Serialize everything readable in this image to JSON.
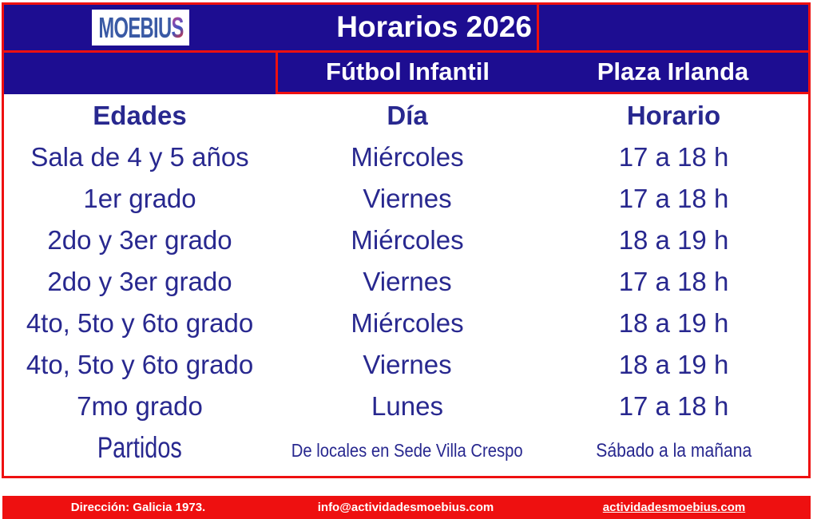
{
  "brand": {
    "logo_main": "MOEBIU",
    "logo_accent": "S"
  },
  "header": {
    "title": "Horarios 2026",
    "program": "Fútbol Infantil",
    "location": "Plaza Irlanda"
  },
  "table": {
    "columns": [
      "Edades",
      "Día",
      "Horario"
    ],
    "rows": [
      {
        "edades": "Sala de 4 y 5 años",
        "dia": "Miércoles",
        "horario": "17 a 18 h"
      },
      {
        "edades": "1er grado",
        "dia": "Viernes",
        "horario": "17 a 18 h"
      },
      {
        "edades": "2do y 3er grado",
        "dia": "Miércoles",
        "horario": "18 a 19 h"
      },
      {
        "edades": "2do y 3er grado",
        "dia": "Viernes",
        "horario": "17 a 18 h"
      },
      {
        "edades": "4to, 5to y 6to grado",
        "dia": "Miércoles",
        "horario": "18 a 19 h"
      },
      {
        "edades": "4to, 5to y 6to grado",
        "dia": "Viernes",
        "horario": "18 a 19 h"
      },
      {
        "edades": "7mo grado",
        "dia": "Lunes",
        "horario": "17 a 18 h"
      },
      {
        "edades": "Partidos",
        "dia": "De locales en Sede Villa Crespo",
        "horario": "Sábado a la mañana",
        "condensed": true
      }
    ]
  },
  "footer": {
    "address": "Dirección: Galicia 1973.",
    "email": "info@actividadesmoebius.com",
    "website": "actividadesmoebius.com"
  },
  "colors": {
    "blue": "#1d0d91",
    "red": "#ee1010",
    "text_navy": "#28288f",
    "logo_blue": "#3a5aa5"
  }
}
